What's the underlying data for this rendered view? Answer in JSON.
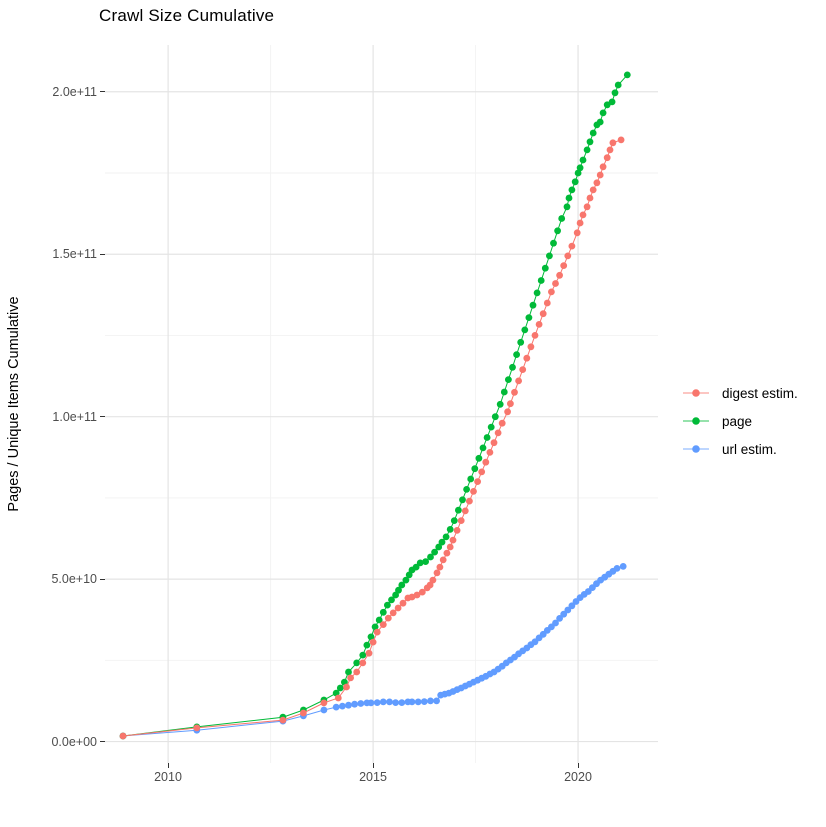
{
  "title": "Crawl Size Cumulative",
  "chart_data": {
    "type": "scatter",
    "title": "Crawl Size Cumulative",
    "xlabel": "",
    "ylabel": "Pages / Unique Items Cumulative",
    "values_unit": "pages, stored as billions (1e9)",
    "grid": "on",
    "background": "#ffffff",
    "x_axis": {
      "range": [
        2008.46,
        2021.95
      ],
      "ticks": [
        {
          "label": "2010",
          "value": 2010
        },
        {
          "label": "2015",
          "value": 2015
        },
        {
          "label": "2020",
          "value": 2020
        }
      ],
      "minor": [
        2012.5,
        2017.5
      ]
    },
    "y_axis": {
      "range": [
        -6.6,
        214.4
      ],
      "ticks": [
        {
          "label": "0.0e+00",
          "value": 0
        },
        {
          "label": "5.0e+10",
          "value": 50
        },
        {
          "label": "1.0e+11",
          "value": 100
        },
        {
          "label": "1.5e+11",
          "value": 150
        },
        {
          "label": "2.0e+11",
          "value": 200
        }
      ],
      "minor": [
        25,
        75,
        125,
        175
      ]
    },
    "legend": {
      "position": "right",
      "entries": [
        {
          "label": "digest estim.",
          "color": "#F8766D"
        },
        {
          "label": "page",
          "color": "#00BA38"
        },
        {
          "label": "url estim.",
          "color": "#619CFF"
        }
      ]
    },
    "series": [
      {
        "name": "url estim.",
        "color": "#619CFF",
        "points": [
          [
            2008.9,
            1.7
          ],
          [
            2010.7,
            3.5
          ],
          [
            2012.8,
            6.3
          ],
          [
            2013.3,
            7.9
          ],
          [
            2013.8,
            9.7
          ],
          [
            2014.1,
            10.6
          ],
          [
            2014.25,
            10.9
          ],
          [
            2014.4,
            11.2
          ],
          [
            2014.55,
            11.5
          ],
          [
            2014.7,
            11.7
          ],
          [
            2014.85,
            11.9
          ],
          [
            2014.95,
            11.9
          ],
          [
            2015.1,
            12.0
          ],
          [
            2015.25,
            12.2
          ],
          [
            2015.4,
            12.2
          ],
          [
            2015.55,
            12.0
          ],
          [
            2015.7,
            12.0
          ],
          [
            2015.85,
            12.2
          ],
          [
            2015.95,
            12.2
          ],
          [
            2016.1,
            12.2
          ],
          [
            2016.25,
            12.3
          ],
          [
            2016.4,
            12.5
          ],
          [
            2016.55,
            12.5
          ],
          [
            2016.65,
            14.3
          ],
          [
            2016.75,
            14.6
          ],
          [
            2016.85,
            14.9
          ],
          [
            2016.95,
            15.4
          ],
          [
            2017.05,
            16.0
          ],
          [
            2017.15,
            16.5
          ],
          [
            2017.25,
            17.1
          ],
          [
            2017.35,
            17.7
          ],
          [
            2017.45,
            18.3
          ],
          [
            2017.55,
            18.9
          ],
          [
            2017.65,
            19.5
          ],
          [
            2017.75,
            20.1
          ],
          [
            2017.85,
            20.8
          ],
          [
            2017.95,
            21.4
          ],
          [
            2018.05,
            22.3
          ],
          [
            2018.15,
            23.2
          ],
          [
            2018.25,
            24.2
          ],
          [
            2018.35,
            25.1
          ],
          [
            2018.45,
            26.0
          ],
          [
            2018.55,
            27.0
          ],
          [
            2018.65,
            27.9
          ],
          [
            2018.75,
            28.8
          ],
          [
            2018.85,
            29.8
          ],
          [
            2018.95,
            30.7
          ],
          [
            2019.05,
            31.9
          ],
          [
            2019.15,
            33.0
          ],
          [
            2019.25,
            34.2
          ],
          [
            2019.35,
            35.3
          ],
          [
            2019.45,
            36.5
          ],
          [
            2019.55,
            37.9
          ],
          [
            2019.65,
            39.2
          ],
          [
            2019.75,
            40.5
          ],
          [
            2019.85,
            41.8
          ],
          [
            2019.95,
            43.1
          ],
          [
            2020.05,
            44.3
          ],
          [
            2020.15,
            45.3
          ],
          [
            2020.25,
            46.2
          ],
          [
            2020.35,
            47.4
          ],
          [
            2020.45,
            48.6
          ],
          [
            2020.55,
            49.7
          ],
          [
            2020.65,
            50.6
          ],
          [
            2020.75,
            51.5
          ],
          [
            2020.85,
            52.4
          ],
          [
            2020.95,
            53.3
          ],
          [
            2021.1,
            53.9
          ]
        ]
      },
      {
        "name": "page",
        "color": "#00BA38",
        "points": [
          [
            2008.9,
            1.7
          ],
          [
            2010.7,
            4.5
          ],
          [
            2012.8,
            7.5
          ],
          [
            2013.3,
            9.7
          ],
          [
            2013.8,
            12.8
          ],
          [
            2014.1,
            14.9
          ],
          [
            2014.2,
            16.5
          ],
          [
            2014.3,
            18.3
          ],
          [
            2014.4,
            21.4
          ],
          [
            2014.6,
            24.2
          ],
          [
            2014.75,
            26.6
          ],
          [
            2014.85,
            29.7
          ],
          [
            2014.95,
            32.2
          ],
          [
            2015.05,
            35.3
          ],
          [
            2015.15,
            37.4
          ],
          [
            2015.25,
            39.8
          ],
          [
            2015.35,
            42.0
          ],
          [
            2015.45,
            43.6
          ],
          [
            2015.55,
            45.1
          ],
          [
            2015.62,
            46.6
          ],
          [
            2015.7,
            48.2
          ],
          [
            2015.8,
            49.7
          ],
          [
            2015.88,
            51.3
          ],
          [
            2015.95,
            52.8
          ],
          [
            2016.05,
            53.7
          ],
          [
            2016.15,
            55.0
          ],
          [
            2016.28,
            55.4
          ],
          [
            2016.4,
            56.8
          ],
          [
            2016.5,
            58.3
          ],
          [
            2016.6,
            59.9
          ],
          [
            2016.68,
            61.4
          ],
          [
            2016.78,
            63.0
          ],
          [
            2016.88,
            65.3
          ],
          [
            2016.98,
            68.0
          ],
          [
            2017.08,
            71.2
          ],
          [
            2017.18,
            74.4
          ],
          [
            2017.28,
            77.6
          ],
          [
            2017.38,
            80.8
          ],
          [
            2017.48,
            84.0
          ],
          [
            2017.58,
            87.2
          ],
          [
            2017.68,
            90.4
          ],
          [
            2017.78,
            93.6
          ],
          [
            2017.88,
            96.8
          ],
          [
            2017.98,
            100.0
          ],
          [
            2018.1,
            103.8
          ],
          [
            2018.2,
            107.6
          ],
          [
            2018.3,
            111.4
          ],
          [
            2018.4,
            115.2
          ],
          [
            2018.5,
            119.1
          ],
          [
            2018.6,
            122.9
          ],
          [
            2018.7,
            126.7
          ],
          [
            2018.8,
            130.5
          ],
          [
            2018.9,
            134.3
          ],
          [
            2019.0,
            138.1
          ],
          [
            2019.1,
            141.9
          ],
          [
            2019.2,
            145.7
          ],
          [
            2019.3,
            149.5
          ],
          [
            2019.4,
            153.4
          ],
          [
            2019.5,
            157.2
          ],
          [
            2019.6,
            161.0
          ],
          [
            2019.73,
            164.6
          ],
          [
            2019.78,
            167.3
          ],
          [
            2019.85,
            169.8
          ],
          [
            2019.93,
            172.3
          ],
          [
            2020.0,
            175.0
          ],
          [
            2020.05,
            176.6
          ],
          [
            2020.12,
            179.0
          ],
          [
            2020.22,
            182.1
          ],
          [
            2020.29,
            184.6
          ],
          [
            2020.37,
            187.3
          ],
          [
            2020.46,
            189.8
          ],
          [
            2020.54,
            190.7
          ],
          [
            2020.61,
            193.5
          ],
          [
            2020.71,
            196.0
          ],
          [
            2020.83,
            196.9
          ],
          [
            2020.9,
            199.7
          ],
          [
            2020.98,
            202.1
          ],
          [
            2021.2,
            205.2
          ]
        ]
      },
      {
        "name": "digest estim.",
        "color": "#F8766D",
        "points": [
          [
            2008.9,
            1.7
          ],
          [
            2010.7,
            4.2
          ],
          [
            2012.8,
            6.6
          ],
          [
            2013.3,
            8.8
          ],
          [
            2013.8,
            11.9
          ],
          [
            2014.15,
            13.4
          ],
          [
            2014.35,
            16.8
          ],
          [
            2014.45,
            19.6
          ],
          [
            2014.6,
            21.4
          ],
          [
            2014.75,
            24.2
          ],
          [
            2014.9,
            27.2
          ],
          [
            2015.0,
            30.6
          ],
          [
            2015.1,
            33.7
          ],
          [
            2015.25,
            36.0
          ],
          [
            2015.37,
            38.0
          ],
          [
            2015.49,
            39.6
          ],
          [
            2015.61,
            41.1
          ],
          [
            2015.73,
            42.6
          ],
          [
            2015.85,
            44.2
          ],
          [
            2015.95,
            44.5
          ],
          [
            2016.07,
            45.1
          ],
          [
            2016.2,
            46.0
          ],
          [
            2016.32,
            47.3
          ],
          [
            2016.39,
            48.2
          ],
          [
            2016.46,
            49.7
          ],
          [
            2016.56,
            51.9
          ],
          [
            2016.63,
            53.7
          ],
          [
            2016.71,
            55.9
          ],
          [
            2016.8,
            58.0
          ],
          [
            2016.88,
            59.9
          ],
          [
            2016.95,
            62.0
          ],
          [
            2017.05,
            65.0
          ],
          [
            2017.15,
            68.0
          ],
          [
            2017.25,
            71.0
          ],
          [
            2017.35,
            74.0
          ],
          [
            2017.45,
            77.0
          ],
          [
            2017.55,
            80.0
          ],
          [
            2017.65,
            83.0
          ],
          [
            2017.75,
            86.0
          ],
          [
            2017.85,
            89.0
          ],
          [
            2017.95,
            92.0
          ],
          [
            2018.05,
            95.0
          ],
          [
            2018.15,
            98.0
          ],
          [
            2018.28,
            101.5
          ],
          [
            2018.35,
            104.0
          ],
          [
            2018.45,
            107.5
          ],
          [
            2018.55,
            111.0
          ],
          [
            2018.65,
            114.5
          ],
          [
            2018.75,
            118.0
          ],
          [
            2018.85,
            121.5
          ],
          [
            2018.95,
            125.0
          ],
          [
            2019.05,
            128.4
          ],
          [
            2019.15,
            131.7
          ],
          [
            2019.25,
            135.0
          ],
          [
            2019.35,
            138.4
          ],
          [
            2019.45,
            141.0
          ],
          [
            2019.55,
            143.5
          ],
          [
            2019.65,
            146.5
          ],
          [
            2019.75,
            149.5
          ],
          [
            2019.85,
            152.5
          ],
          [
            2019.98,
            156.6
          ],
          [
            2020.05,
            159.6
          ],
          [
            2020.12,
            162.1
          ],
          [
            2020.22,
            164.6
          ],
          [
            2020.29,
            167.3
          ],
          [
            2020.37,
            169.8
          ],
          [
            2020.46,
            172.0
          ],
          [
            2020.54,
            174.4
          ],
          [
            2020.61,
            176.9
          ],
          [
            2020.71,
            179.7
          ],
          [
            2020.78,
            182.1
          ],
          [
            2020.85,
            184.3
          ],
          [
            2021.05,
            185.2
          ]
        ]
      }
    ]
  }
}
